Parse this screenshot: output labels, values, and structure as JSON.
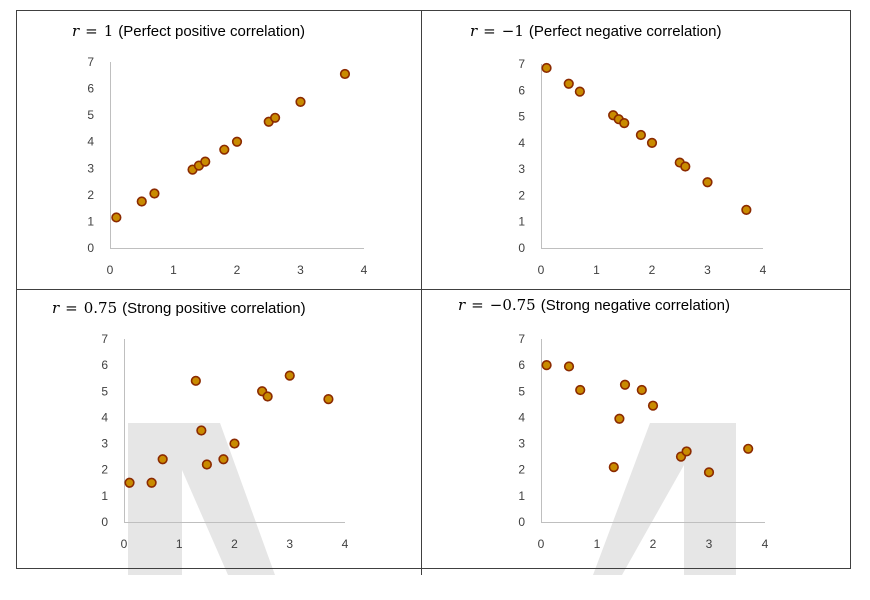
{
  "colors": {
    "point_fill": "#c98b00",
    "point_stroke": "#8b2a00",
    "axis": "#bfbfbf",
    "grid_border": "#404040",
    "watermark": "#e6e6e6"
  },
  "chart_data": [
    {
      "type": "scatter",
      "title_var": "r",
      "title_op": "=",
      "title_value": "1",
      "title_desc": "(Perfect positive correlation)",
      "xlim": [
        0,
        4
      ],
      "ylim": [
        0,
        7
      ],
      "xticks": [
        "0",
        "1",
        "2",
        "3",
        "4"
      ],
      "yticks": [
        "0",
        "1",
        "2",
        "3",
        "4",
        "5",
        "6",
        "7"
      ],
      "points": [
        [
          0.1,
          1.15
        ],
        [
          0.5,
          1.75
        ],
        [
          0.7,
          2.05
        ],
        [
          1.3,
          2.95
        ],
        [
          1.4,
          3.1
        ],
        [
          1.5,
          3.25
        ],
        [
          1.8,
          3.7
        ],
        [
          2.0,
          4.0
        ],
        [
          2.5,
          4.75
        ],
        [
          2.6,
          4.9
        ],
        [
          3.0,
          5.5
        ],
        [
          3.7,
          6.55
        ]
      ]
    },
    {
      "type": "scatter",
      "title_var": "r",
      "title_op": "=",
      "title_value": "−1",
      "title_desc": "(Perfect negative correlation)",
      "xlim": [
        0,
        4
      ],
      "ylim": [
        0,
        7
      ],
      "xticks": [
        "0",
        "1",
        "2",
        "3",
        "4"
      ],
      "yticks": [
        "0",
        "1",
        "2",
        "3",
        "4",
        "5",
        "6",
        "7"
      ],
      "points": [
        [
          0.1,
          6.85
        ],
        [
          0.5,
          6.25
        ],
        [
          0.7,
          5.95
        ],
        [
          1.3,
          5.05
        ],
        [
          1.4,
          4.9
        ],
        [
          1.5,
          4.75
        ],
        [
          1.8,
          4.3
        ],
        [
          2.0,
          4.0
        ],
        [
          2.5,
          3.25
        ],
        [
          2.6,
          3.1
        ],
        [
          3.0,
          2.5
        ],
        [
          3.7,
          1.45
        ]
      ]
    },
    {
      "type": "scatter",
      "title_var": "r",
      "title_op": "=",
      "title_value": "0.75",
      "title_desc": "(Strong positive correlation)",
      "xlim": [
        0,
        4
      ],
      "ylim": [
        0,
        7
      ],
      "xticks": [
        "0",
        "1",
        "2",
        "3",
        "4"
      ],
      "yticks": [
        "0",
        "1",
        "2",
        "3",
        "4",
        "5",
        "6",
        "7"
      ],
      "points": [
        [
          0.1,
          1.5
        ],
        [
          0.5,
          1.5
        ],
        [
          0.7,
          2.4
        ],
        [
          1.3,
          5.4
        ],
        [
          1.4,
          3.5
        ],
        [
          1.5,
          2.2
        ],
        [
          1.8,
          2.4
        ],
        [
          2.0,
          3.0
        ],
        [
          2.5,
          5.0
        ],
        [
          2.6,
          4.8
        ],
        [
          3.0,
          5.6
        ],
        [
          3.7,
          4.7
        ]
      ]
    },
    {
      "type": "scatter",
      "title_var": "r",
      "title_op": "=",
      "title_value": "−0.75",
      "title_desc": "(Strong negative correlation)",
      "xlim": [
        0,
        4
      ],
      "ylim": [
        0,
        7
      ],
      "xticks": [
        "0",
        "1",
        "2",
        "3",
        "4"
      ],
      "yticks": [
        "0",
        "1",
        "2",
        "3",
        "4",
        "5",
        "6",
        "7"
      ],
      "points": [
        [
          0.1,
          6.0
        ],
        [
          0.5,
          5.95
        ],
        [
          0.7,
          5.05
        ],
        [
          1.3,
          2.1
        ],
        [
          1.4,
          3.95
        ],
        [
          1.5,
          5.25
        ],
        [
          1.8,
          5.05
        ],
        [
          2.0,
          4.45
        ],
        [
          2.5,
          2.5
        ],
        [
          2.6,
          2.7
        ],
        [
          3.0,
          1.9
        ],
        [
          3.7,
          2.8
        ]
      ]
    }
  ]
}
